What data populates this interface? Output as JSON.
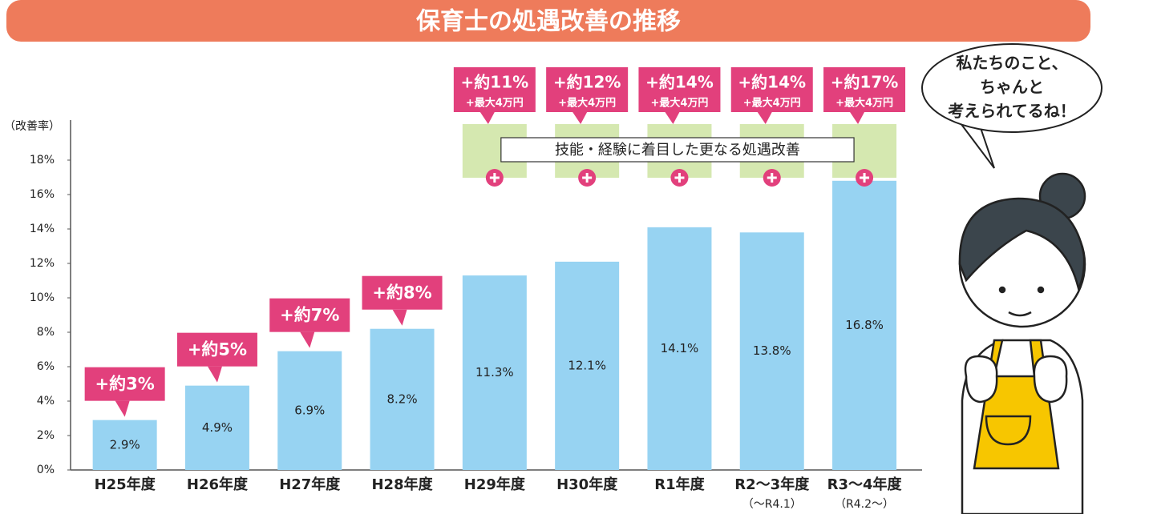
{
  "chart_data": {
    "type": "bar",
    "title": "保育士の処遇改善の推移",
    "y_label": "（改善率）",
    "categories": [
      "H25年度",
      "H26年度",
      "H27年度",
      "H28年度",
      "H29年度",
      "H30年度",
      "R1年度",
      "R2〜3年度",
      "R3〜4年度"
    ],
    "category_notes": [
      null,
      null,
      null,
      null,
      null,
      null,
      null,
      "（〜R4.1）",
      "（R4.2〜）"
    ],
    "values": [
      2.9,
      4.9,
      6.9,
      8.2,
      11.3,
      12.1,
      14.1,
      13.8,
      16.8
    ],
    "value_labels": [
      "2.9%",
      "4.9%",
      "6.9%",
      "8.2%",
      "11.3%",
      "12.1%",
      "14.1%",
      "13.8%",
      "16.8%"
    ],
    "increases": [
      "+約3%",
      "+約5%",
      "+約7%",
      "+約8%",
      "+約11%",
      "+約12%",
      "+約14%",
      "+約14%",
      "+約17%"
    ],
    "increase_notes": [
      null,
      null,
      null,
      null,
      "+最大4万円",
      "+最大4万円",
      "+最大4万円",
      "+最大4万円",
      "+最大4万円"
    ],
    "band_label": "技能・経験に着目した更なる処遇改善",
    "speech": [
      "私たちのこと、",
      "ちゃんと",
      "考えられてるね！"
    ],
    "color": "#97d3f2",
    "ylim": [
      0,
      20
    ],
    "yticks": [
      {
        "value": 0,
        "label": "0%"
      },
      {
        "value": 2,
        "label": "2%"
      },
      {
        "value": 4,
        "label": "4%"
      },
      {
        "value": 6,
        "label": "6%"
      },
      {
        "value": 8,
        "label": "8%"
      },
      {
        "value": 10,
        "label": "10%"
      },
      {
        "value": 12,
        "label": "12%"
      },
      {
        "value": 14,
        "label": "14%"
      },
      {
        "value": 16,
        "label": "16%"
      },
      {
        "value": 18,
        "label": "18%"
      }
    ]
  }
}
